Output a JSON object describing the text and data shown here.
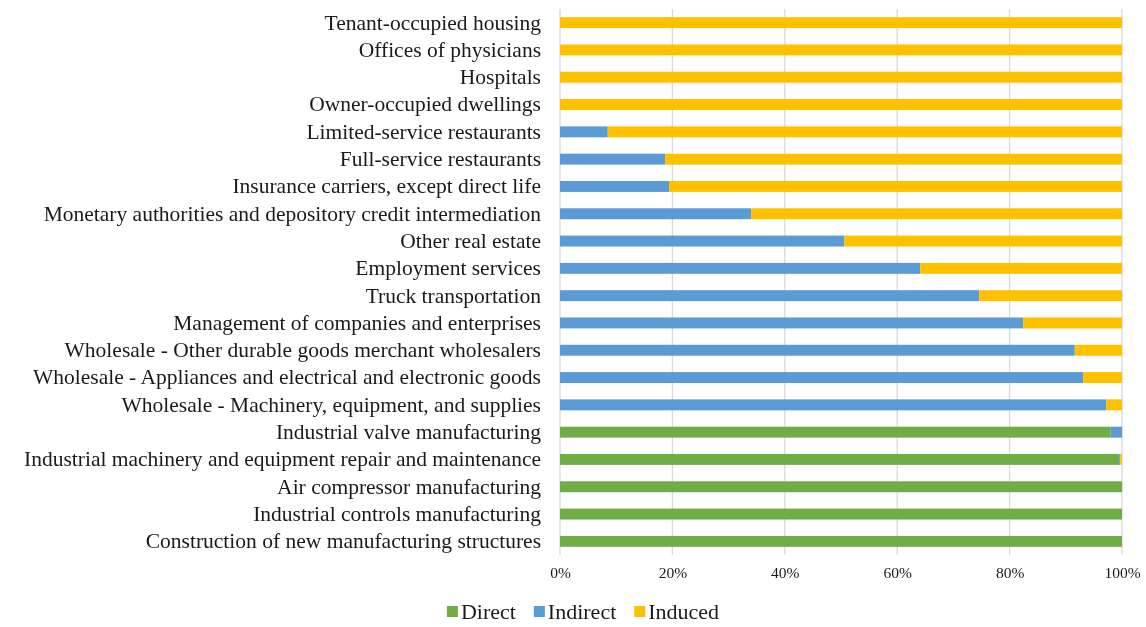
{
  "chart_data": {
    "type": "bar",
    "orientation": "horizontal",
    "stacked": true,
    "categories": [
      "Tenant-occupied housing",
      "Offices of physicians",
      "Hospitals",
      "Owner-occupied dwellings",
      "Limited-service restaurants",
      "Full-service restaurants",
      "Insurance carriers, except direct life",
      "Monetary authorities and depository credit intermediation",
      "Other real estate",
      "Employment services",
      "Truck transportation",
      "Management of companies and enterprises",
      "Wholesale - Other durable goods merchant wholesalers",
      "Wholesale - Appliances and electrical and electronic goods",
      "Wholesale - Machinery, equipment, and supplies",
      "Industrial valve manufacturing",
      "Industrial machinery and equipment repair and maintenance",
      "Air compressor manufacturing",
      "Industrial controls manufacturing",
      "Construction of new manufacturing structures"
    ],
    "series": [
      {
        "name": "Direct",
        "color": "#70ad47",
        "values": [
          0,
          0,
          0,
          0,
          0,
          0,
          0,
          0,
          0,
          0,
          0,
          0,
          0,
          0,
          0,
          98.0,
          99.5,
          100,
          100,
          100
        ]
      },
      {
        "name": "Indirect",
        "color": "#5b9bd5",
        "values": [
          0,
          0,
          0,
          0,
          8.5,
          18.7,
          19.4,
          34.0,
          50.6,
          64.1,
          74.6,
          82.4,
          91.6,
          93.1,
          97.2,
          2.0,
          0.2,
          0,
          0,
          0
        ]
      },
      {
        "name": "Induced",
        "color": "#ffc000",
        "values": [
          100,
          100,
          100,
          100,
          91.5,
          81.3,
          80.6,
          66.0,
          49.4,
          35.9,
          25.4,
          17.6,
          8.4,
          6.9,
          2.8,
          0,
          0.3,
          0,
          0,
          0
        ]
      }
    ],
    "xlim": [
      0,
      100
    ],
    "xticks": [
      {
        "value": 0,
        "label": "0%"
      },
      {
        "value": 20,
        "label": "20%"
      },
      {
        "value": 40,
        "label": "40%"
      },
      {
        "value": 60,
        "label": "60%"
      },
      {
        "value": 80,
        "label": "80%"
      },
      {
        "value": 100,
        "label": "100%"
      }
    ],
    "grid": "x",
    "legend": "bottom"
  }
}
